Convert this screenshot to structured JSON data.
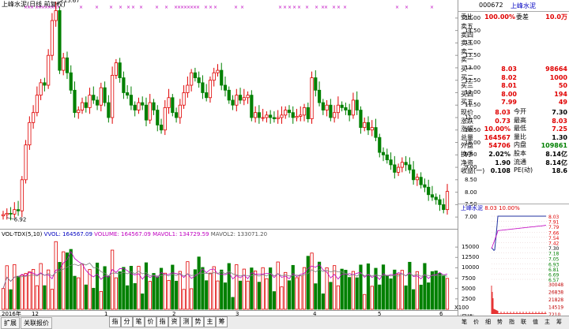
{
  "chart_title": "上峰水泥(日线 前复权)",
  "stock": {
    "code": "000672",
    "name": "上峰水泥"
  },
  "price_axis": [
    "15.00",
    "14.50",
    "14.00",
    "13.50",
    "13.00",
    "12.50",
    "12.00",
    "11.50",
    "11.00",
    "10.50",
    "10.00",
    "9.50",
    "9.00",
    "8.50",
    "8.00",
    "7.50",
    "7.00"
  ],
  "high_label": "15.67",
  "low_label": "6.92",
  "volume_indicator": {
    "name": "VOL-TDX(5,10)",
    "vvol": "VVOL: 164567.09",
    "volume": "VOLUME: 164567.09",
    "mavol1": "MAVOL1: 134729.59",
    "mavol2": "MAVOL2: 133071.20"
  },
  "vol_axis": [
    "15000",
    "12500",
    "10000",
    "7500",
    "5000",
    "2500"
  ],
  "vol_unit": "X100",
  "time_axis": [
    "2016年",
    "12",
    "1",
    "2",
    "3",
    "4",
    "5",
    "6"
  ],
  "period_label": "日线",
  "bottom_tabs": [
    "扩展",
    "关联报价"
  ],
  "bottom_buttons": [
    "指",
    "分",
    "笔",
    "价",
    "指",
    "资",
    "测",
    "势",
    "主",
    "筹"
  ],
  "order_book": {
    "weibi": {
      "label": "委比",
      "value": "100.00%"
    },
    "weicha": {
      "label": "委差",
      "value": "10.0万"
    },
    "sell": [
      {
        "label": "卖五",
        "price": "",
        "vol": ""
      },
      {
        "label": "卖四",
        "price": "",
        "vol": ""
      },
      {
        "label": "卖三",
        "price": "",
        "vol": ""
      },
      {
        "label": "卖二",
        "price": "",
        "vol": ""
      },
      {
        "label": "卖一",
        "price": "",
        "vol": ""
      }
    ],
    "buy": [
      {
        "label": "买一",
        "price": "8.03",
        "vol": "98664"
      },
      {
        "label": "买二",
        "price": "8.02",
        "vol": "1000"
      },
      {
        "label": "买三",
        "price": "8.01",
        "vol": "50"
      },
      {
        "label": "买四",
        "price": "8.00",
        "vol": "194"
      },
      {
        "label": "买五",
        "price": "7.99",
        "vol": "49"
      }
    ]
  },
  "quote": [
    {
      "l1": "现价",
      "v1": "8.03",
      "l2": "今开",
      "v2": "7.30"
    },
    {
      "l1": "涨跌",
      "v1": "0.73",
      "l2": "最高",
      "v2": "8.03"
    },
    {
      "l1": "涨幅",
      "v1": "10.00%",
      "l2": "最低",
      "v2": "7.25"
    },
    {
      "l1": "总量",
      "v1": "164567",
      "l2": "量比",
      "v2": "1.30"
    },
    {
      "l1": "外盘",
      "v1": "54706",
      "l2": "内盘",
      "v2": "109861"
    },
    {
      "l1": "换手",
      "v1": "2.02%",
      "l2": "股本",
      "v2": "8.14亿"
    },
    {
      "l1": "净资",
      "v1": "1.90",
      "l2": "流通",
      "v2": "8.14亿"
    },
    {
      "l1": "收益(一)",
      "v1": "0.108",
      "l2": "PE(动)",
      "v2": "18.6"
    }
  ],
  "mini_chart": {
    "name": "上峰水泥",
    "price": "8.03",
    "pct": "10.00%",
    "price_axis": [
      "8.03",
      "7.91",
      "7.79",
      "7.66",
      "7.54",
      "7.42",
      "7.30",
      "7.18",
      "7.05",
      "6.93",
      "6.81",
      "6.69",
      "6.57"
    ],
    "vol_axis": [
      "30048",
      "26838",
      "21828",
      "14519",
      "7210"
    ]
  },
  "mini_tabs": [
    "笔",
    "价",
    "细",
    "势",
    "指",
    "联",
    "值",
    "主",
    "筹"
  ],
  "colors": {
    "up": "#e00000",
    "down": "#008000",
    "ma1": "#c000c0",
    "ma2": "#808080"
  }
}
